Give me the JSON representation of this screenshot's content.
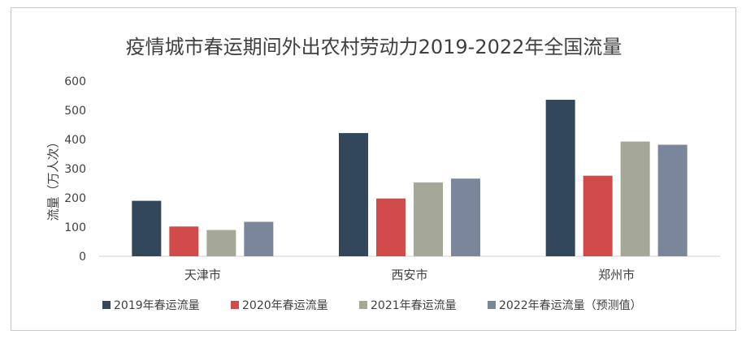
{
  "chart_data": {
    "type": "bar",
    "title": "疫情城市春运期间外出农村劳动力2019-2022年全国流量",
    "ylabel": "流量（万人次）",
    "xlabel": "",
    "categories": [
      "天津市",
      "西安市",
      "郑州市"
    ],
    "ylim": [
      0,
      600
    ],
    "yticks": [
      0,
      100,
      200,
      300,
      400,
      500,
      600
    ],
    "grid": false,
    "legend_position": "bottom",
    "series": [
      {
        "name": "2019年春运流量",
        "color": "#33475b",
        "values": [
          190,
          422,
          536
        ]
      },
      {
        "name": "2020年春运流量",
        "color": "#d14b4b",
        "values": [
          102,
          198,
          276
        ]
      },
      {
        "name": "2021年春运流量",
        "color": "#a5a797",
        "values": [
          90,
          253,
          393
        ]
      },
      {
        "name": "2022年春运流量（预测值）",
        "color": "#7a8699",
        "values": [
          118,
          266,
          382
        ]
      }
    ]
  }
}
